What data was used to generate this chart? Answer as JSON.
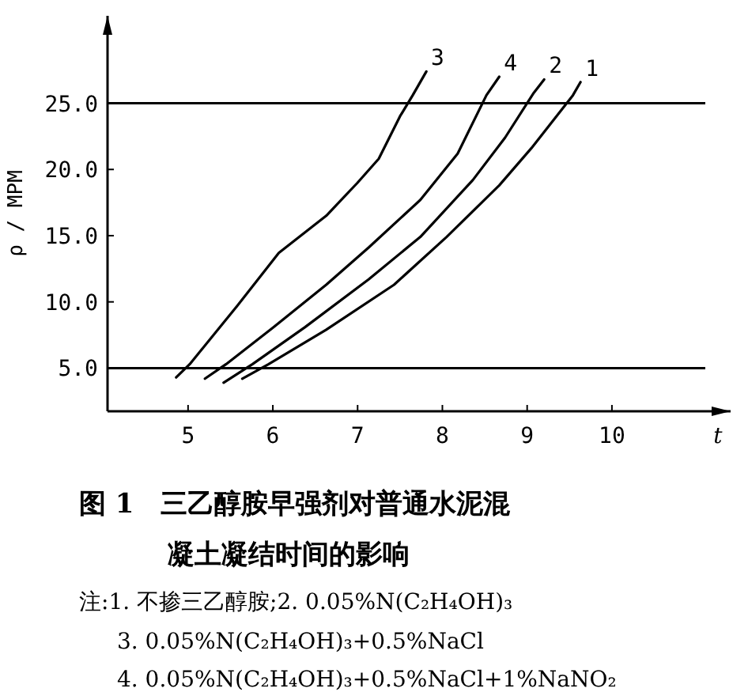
{
  "chart_data": {
    "type": "line",
    "title": "图 1　三乙醇胺早强剂对普通水泥混凝土凝结时间的影响",
    "xlabel": "t",
    "ylabel": "ρ / MPM",
    "xlim": [
      4.05,
      11.4
    ],
    "ylim": [
      1.74,
      31.6
    ],
    "xticks": [
      5,
      6,
      7,
      8,
      9,
      10
    ],
    "yticks": [
      {
        "value": 5,
        "label": "5.0"
      },
      {
        "value": 10,
        "label": "10.0"
      },
      {
        "value": 15,
        "label": "15.0"
      },
      {
        "value": 20,
        "label": "20.0"
      },
      {
        "value": 25,
        "label": "25.0"
      }
    ],
    "ref_lines": [
      {
        "axis": "y",
        "value": 5,
        "color": "#000000"
      },
      {
        "axis": "y",
        "value": 25,
        "color": "#000000"
      }
    ],
    "grid": false,
    "legend": false,
    "marker": "none",
    "line_style": "solid",
    "series": [
      {
        "name": "1",
        "color": "#000000",
        "x": [
          5.64,
          5.95,
          6.63,
          7.43,
          8.05,
          8.67,
          9.05,
          9.54,
          9.63
        ],
        "values": [
          4.2,
          5.3,
          7.9,
          11.3,
          14.9,
          18.8,
          21.6,
          25.6,
          26.6
        ]
      },
      {
        "name": "2",
        "color": "#000000",
        "x": [
          5.42,
          5.76,
          6.38,
          7.13,
          7.74,
          8.36,
          8.74,
          9.08,
          9.2
        ],
        "values": [
          3.9,
          5.3,
          8.1,
          11.7,
          14.9,
          19.2,
          22.4,
          25.8,
          26.8
        ]
      },
      {
        "name": "3",
        "color": "#000000",
        "x": [
          4.86,
          5.02,
          5.58,
          6.07,
          6.63,
          7.0,
          7.25,
          7.5,
          7.65,
          7.81
        ],
        "values": [
          4.3,
          5.3,
          9.7,
          13.7,
          16.5,
          19.0,
          20.8,
          24.0,
          25.6,
          27.4
        ]
      },
      {
        "name": "4",
        "color": "#000000",
        "x": [
          5.2,
          5.45,
          6.01,
          6.63,
          7.13,
          7.74,
          8.18,
          8.52,
          8.67
        ],
        "values": [
          4.2,
          5.3,
          8.1,
          11.3,
          14.1,
          17.7,
          21.2,
          25.6,
          27.0
        ]
      }
    ],
    "annotations": [
      "注:1. 不掺三乙醇胺;2. 0.05%N(C₂H₄OH)₃",
      "3. 0.05%N(C₂H₄OH)₃+0.5%NaCl",
      "4. 0.05%N(C₂H₄OH)₃+0.5%NaCl+1%NaNO₂"
    ]
  }
}
